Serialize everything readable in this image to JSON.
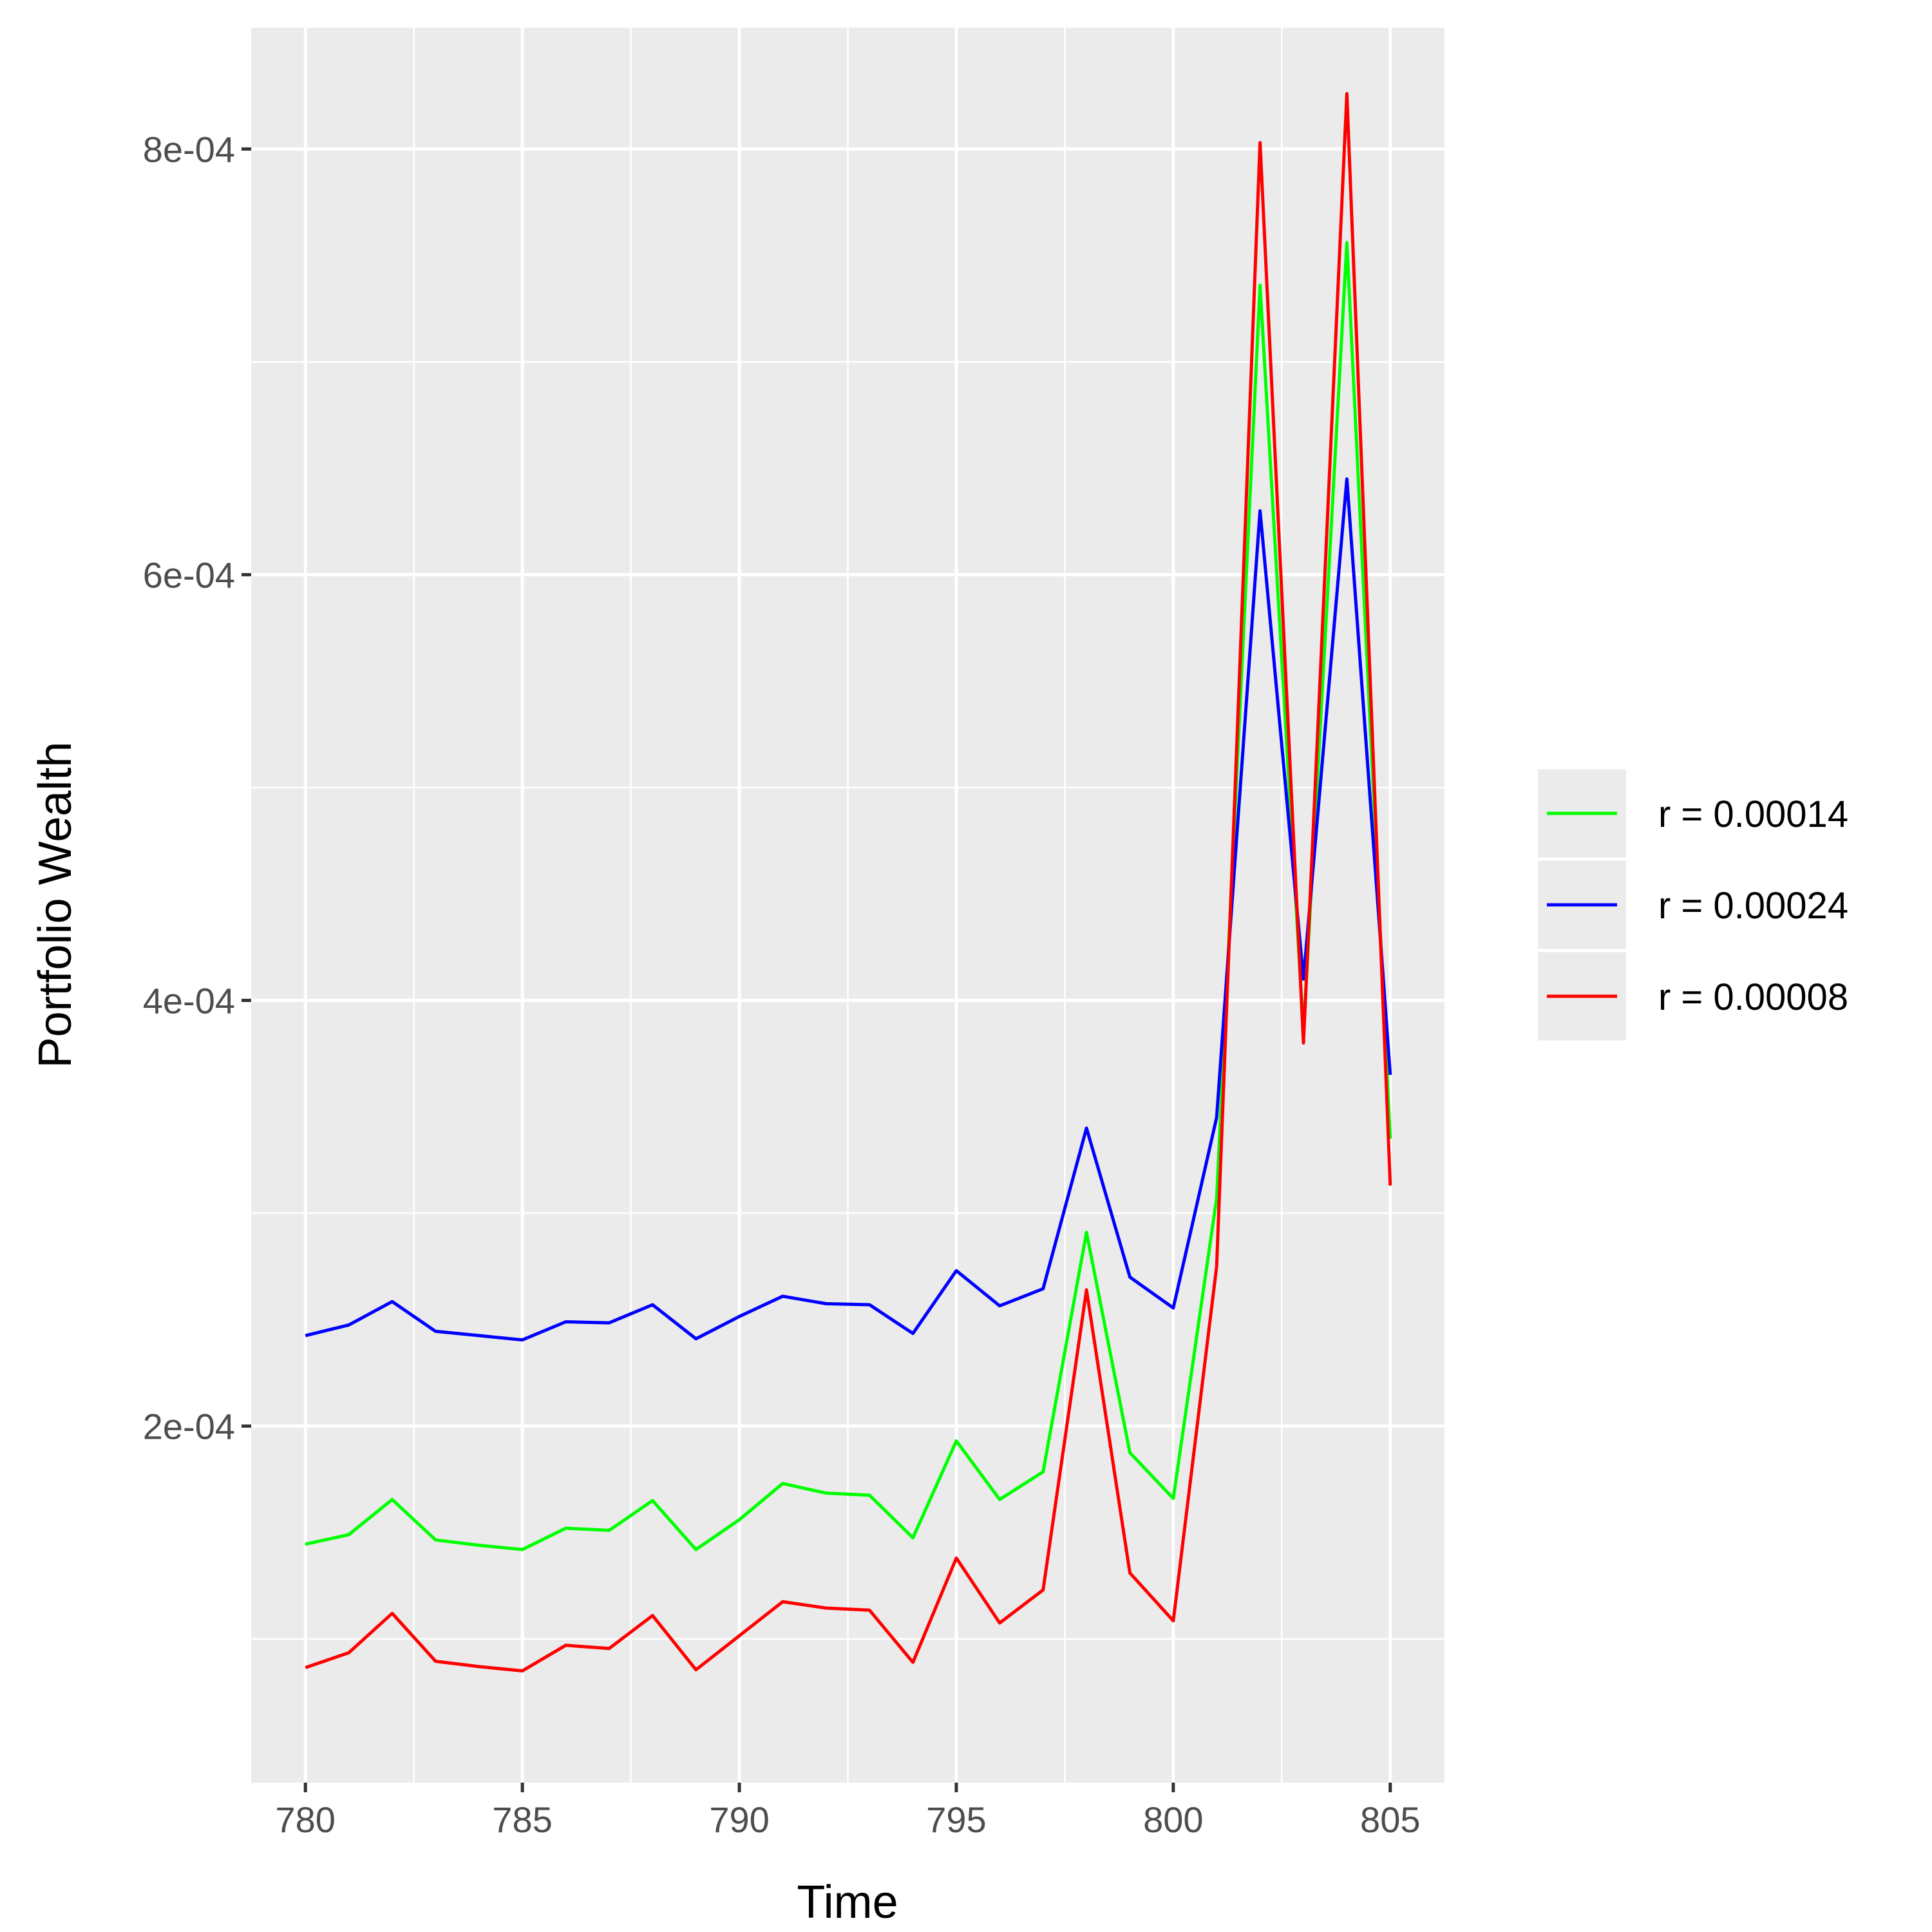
{
  "chart_data": {
    "type": "line",
    "title": "",
    "xlabel": "Time",
    "ylabel": "Portfolio Wealth",
    "xlim": [
      778.75,
      806.25
    ],
    "ylim": [
      3.25e-05,
      0.000857
    ],
    "x_ticks": [
      780,
      785,
      790,
      795,
      800,
      805
    ],
    "x_tick_labels": [
      "780",
      "785",
      "790",
      "795",
      "800",
      "805"
    ],
    "y_ticks": [
      0.0002,
      0.0004,
      0.0006,
      0.0008
    ],
    "y_tick_labels": [
      "2e-04",
      "4e-04",
      "6e-04",
      "8e-04"
    ],
    "grid": true,
    "legend_position": "right",
    "x": [
      780,
      781,
      782,
      783,
      784,
      785,
      786,
      787,
      788,
      789,
      790,
      791,
      792,
      793,
      794,
      795,
      796,
      797,
      798,
      799,
      800,
      801,
      802,
      803,
      804,
      805
    ],
    "series": [
      {
        "name": "r = 0.00014",
        "color": "#00ff00",
        "values": [
          0.0001445,
          0.000149,
          0.0001655,
          0.0001465,
          0.000144,
          0.000142,
          0.000152,
          0.000151,
          0.000165,
          0.000142,
          0.000156,
          0.000173,
          0.0001685,
          0.0001675,
          0.0001475,
          0.000193,
          0.0001655,
          0.0001785,
          0.000291,
          0.0001875,
          0.000166,
          0.000307,
          0.000736,
          0.000385,
          0.000756,
          0.000335
        ]
      },
      {
        "name": "r = 0.00024",
        "color": "#0000ff",
        "values": [
          0.0002425,
          0.0002475,
          0.0002585,
          0.0002445,
          0.0002425,
          0.0002405,
          0.000249,
          0.0002485,
          0.000257,
          0.000241,
          0.0002515,
          0.000261,
          0.0002575,
          0.000257,
          0.0002435,
          0.000273,
          0.0002565,
          0.0002645,
          0.00034,
          0.00027,
          0.0002555,
          0.000345,
          0.00063,
          0.00041,
          0.000645,
          0.000365
        ]
      },
      {
        "name": "r = 0.00008",
        "color": "#ff0000",
        "values": [
          8.65e-05,
          9.35e-05,
          0.000112,
          8.95e-05,
          8.7e-05,
          8.5e-05,
          9.7e-05,
          9.55e-05,
          0.000111,
          8.55e-05,
          0.0001015,
          0.0001175,
          0.0001145,
          0.0001135,
          8.9e-05,
          0.000138,
          0.0001075,
          0.000123,
          0.000264,
          0.000131,
          0.0001085,
          0.000275,
          0.000803,
          0.00038,
          0.000826,
          0.000313
        ]
      }
    ]
  }
}
